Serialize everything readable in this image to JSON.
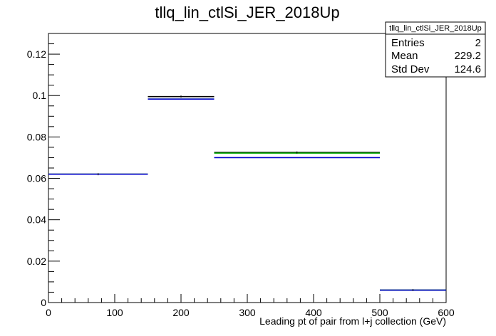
{
  "chart_data": {
    "type": "step",
    "title": "tllq_lin_ctlSi_JER_2018Up",
    "xlabel": "Leading pt of pair from l+j collection (GeV)",
    "ylabel": "",
    "xlim": [
      0,
      600
    ],
    "ylim": [
      0,
      0.13
    ],
    "x_ticks": [
      "0",
      "100",
      "200",
      "300",
      "400",
      "500",
      "600"
    ],
    "y_ticks": [
      "0",
      "0.02",
      "0.04",
      "0.06",
      "0.08",
      "0.1",
      "0.12"
    ],
    "bin_edges": [
      0,
      150,
      250,
      500,
      600
    ],
    "series": [
      {
        "color": "#000000",
        "values": [
          0.062,
          0.0995,
          0.0725,
          0.006
        ]
      },
      {
        "color": "#00aa00",
        "values": [
          0.062,
          0.0983,
          0.0722,
          0.006
        ]
      },
      {
        "color": "#0000cc",
        "values": [
          0.062,
          0.0983,
          0.07,
          0.006
        ]
      }
    ],
    "stats_box": {
      "name": "tllq_lin_ctlSi_JER_2018Up",
      "rows": [
        {
          "label": "Entries",
          "value": "2"
        },
        {
          "label": "Mean",
          "value": "229.2"
        },
        {
          "label": "Std Dev",
          "value": "124.6"
        }
      ]
    },
    "grid": false
  }
}
